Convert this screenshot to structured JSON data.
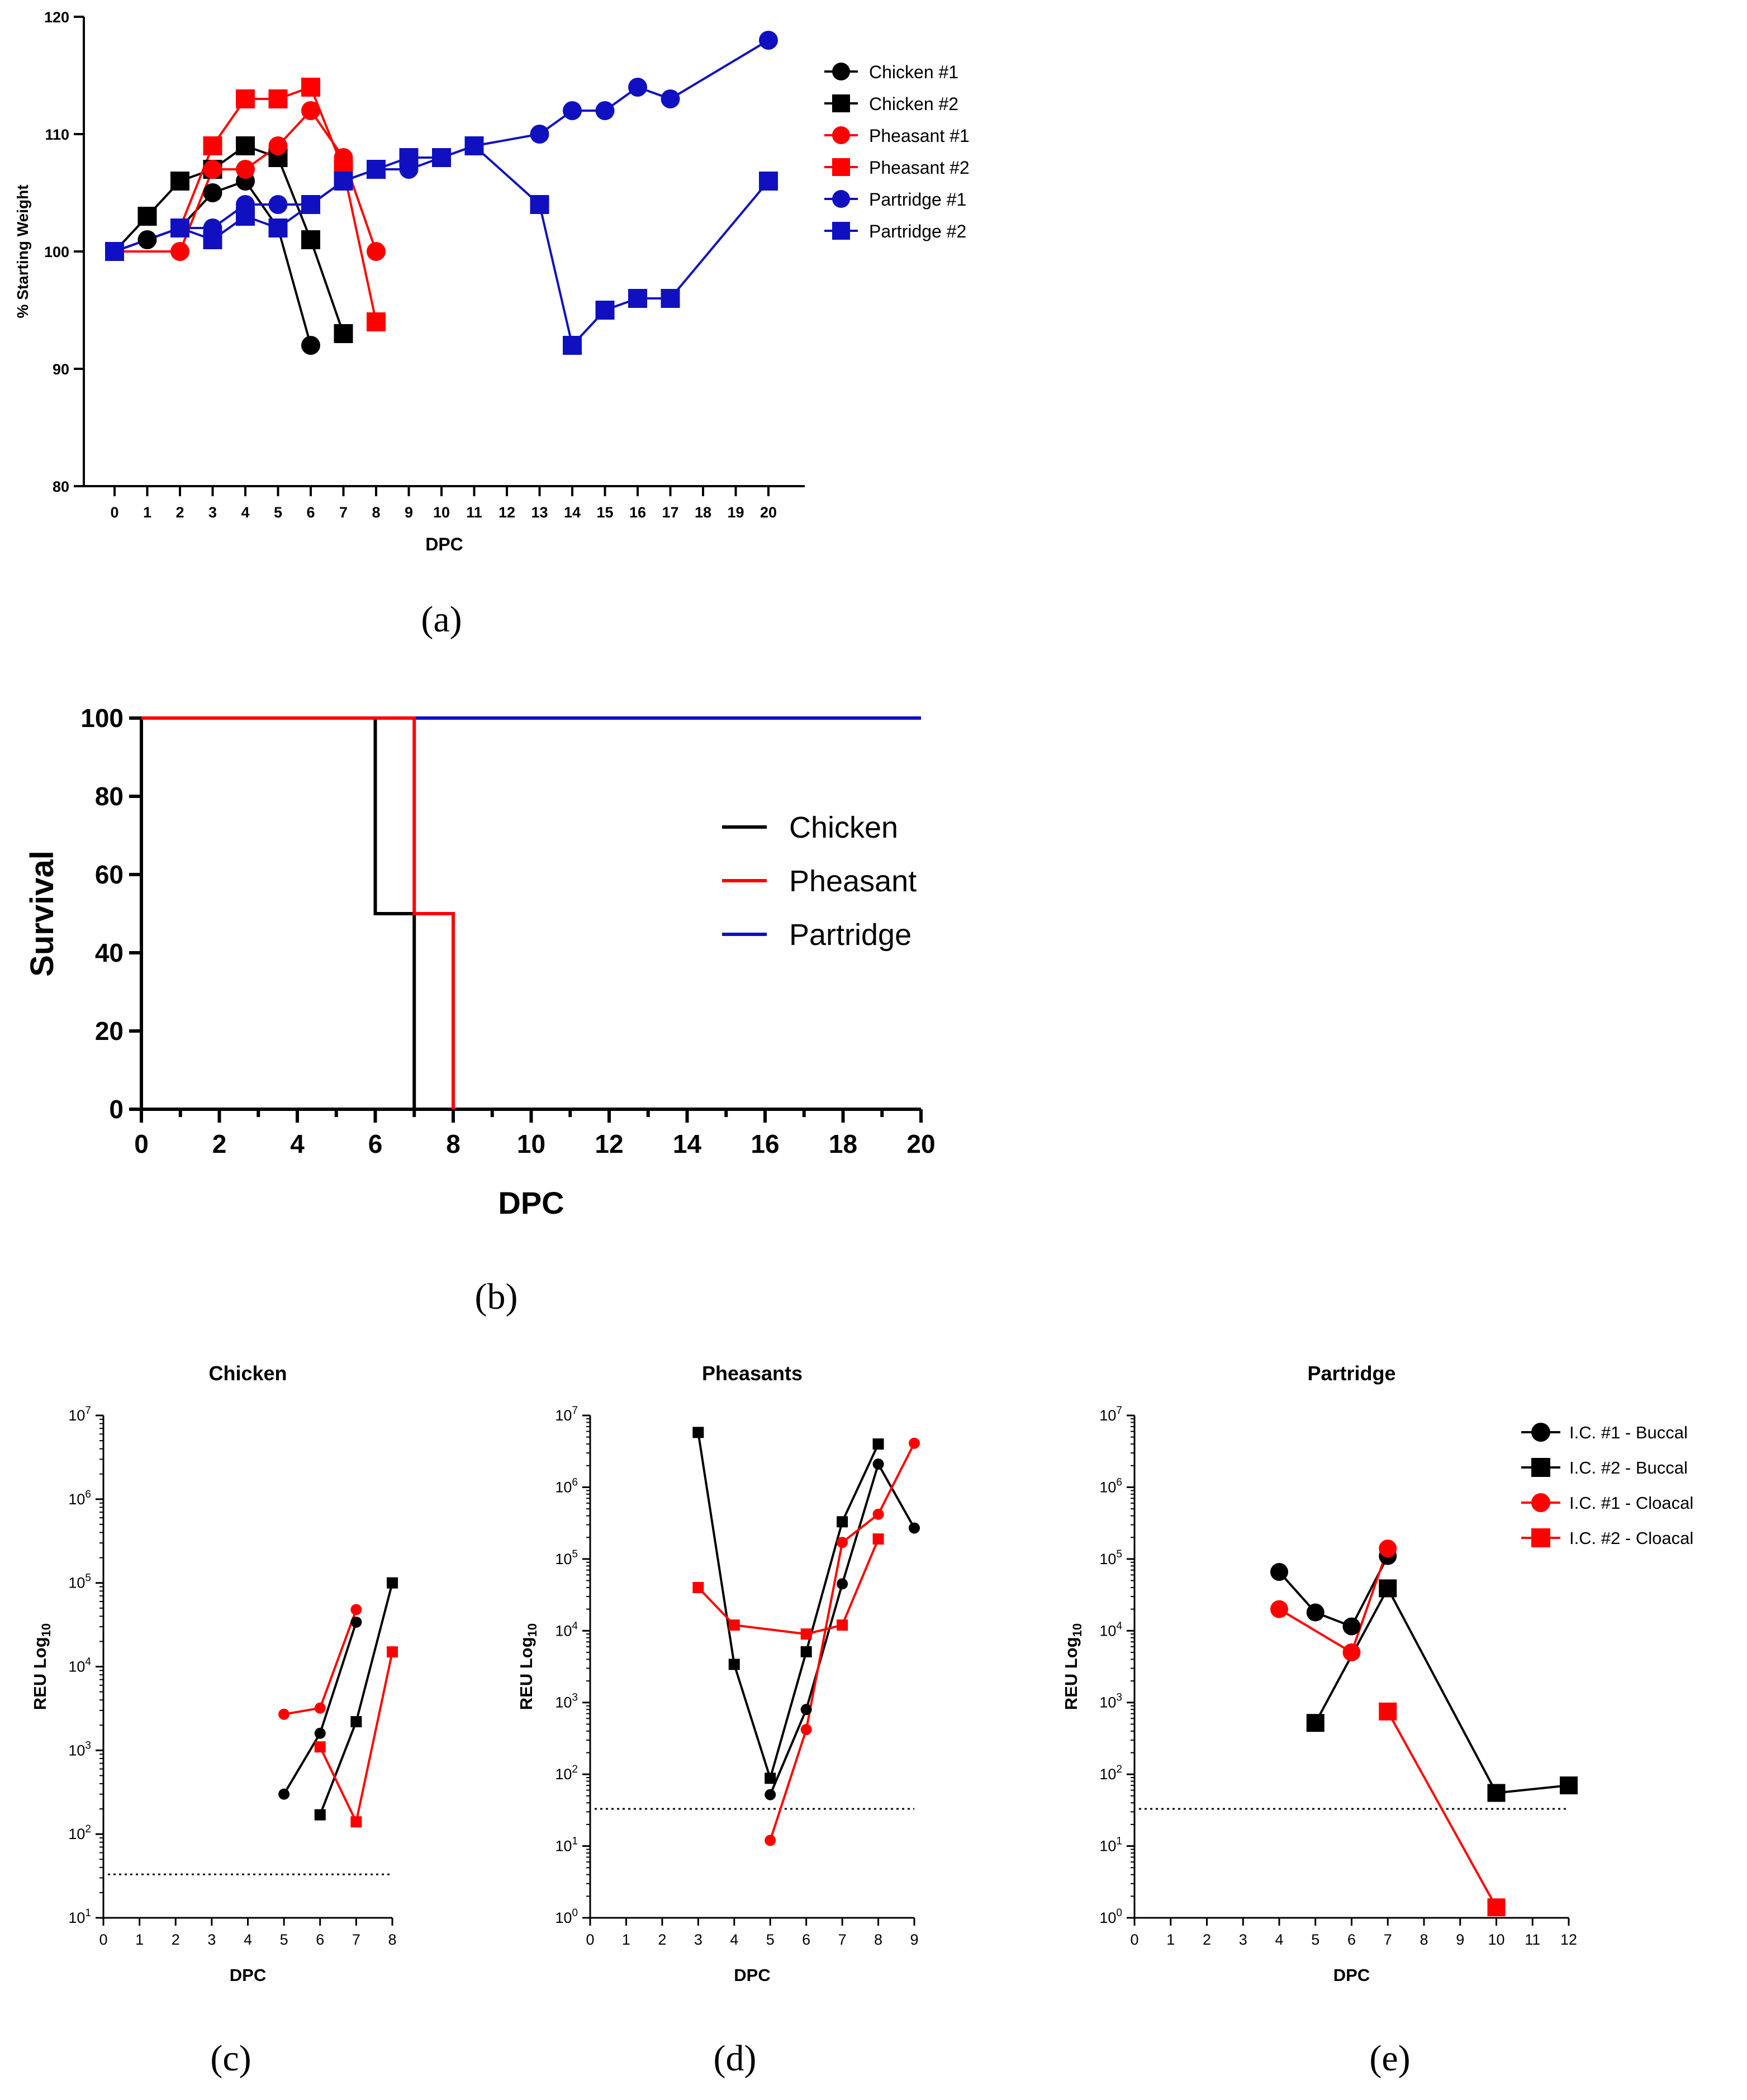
{
  "panel_labels": [
    "(a)",
    "(b)",
    "(c)",
    "(d)",
    "(e)"
  ],
  "chart_data": [
    {
      "id": "a",
      "type": "line",
      "title": "",
      "xlabel": "DPC",
      "ylabel": "% Starting Weight",
      "xlim": [
        0,
        20
      ],
      "ylim": [
        80,
        120
      ],
      "xticks": [
        0,
        1,
        2,
        3,
        4,
        5,
        6,
        7,
        8,
        9,
        10,
        11,
        12,
        13,
        14,
        15,
        16,
        17,
        18,
        19,
        20
      ],
      "yticks": [
        80,
        90,
        100,
        110,
        120
      ],
      "legend_position": "top-right outside",
      "colors": {
        "black": "#000000",
        "red": "#ff0000",
        "blue": "#1010c0"
      },
      "series": [
        {
          "name": "Chicken #1",
          "color": "#000000",
          "marker": "circle",
          "x": [
            0,
            1,
            2,
            3,
            4,
            5,
            6
          ],
          "y": [
            100,
            101,
            102,
            105,
            106,
            102,
            92
          ]
        },
        {
          "name": "Chicken #2",
          "color": "#000000",
          "marker": "square",
          "x": [
            0,
            1,
            2,
            3,
            4,
            5,
            6,
            7
          ],
          "y": [
            100,
            103,
            106,
            107,
            109,
            108,
            101,
            93
          ]
        },
        {
          "name": "Pheasant #1",
          "color": "#ff0000",
          "marker": "circle",
          "x": [
            0,
            2,
            3,
            4,
            5,
            6,
            7,
            8
          ],
          "y": [
            100,
            100,
            107,
            107,
            109,
            112,
            108,
            100
          ]
        },
        {
          "name": "Pheasant #2",
          "color": "#ff0000",
          "marker": "square",
          "x": [
            0,
            2,
            3,
            4,
            5,
            6,
            7,
            8
          ],
          "y": [
            100,
            102,
            109,
            113,
            113,
            114,
            107,
            94
          ]
        },
        {
          "name": "Partridge #1",
          "color": "#1010c0",
          "marker": "circle",
          "x": [
            0,
            2,
            3,
            4,
            5,
            6,
            7,
            8,
            9,
            10,
            11,
            13,
            14,
            15,
            16,
            17,
            20
          ],
          "y": [
            100,
            102,
            102,
            104,
            104,
            104,
            106,
            107,
            107,
            108,
            109,
            110,
            112,
            112,
            114,
            113,
            118
          ]
        },
        {
          "name": "Partridge #2",
          "color": "#1010c0",
          "marker": "square",
          "x": [
            0,
            2,
            3,
            4,
            5,
            6,
            7,
            8,
            9,
            10,
            11,
            13,
            14,
            15,
            16,
            17,
            20
          ],
          "y": [
            100,
            102,
            101,
            103,
            102,
            104,
            106,
            107,
            108,
            108,
            109,
            104,
            92,
            95,
            96,
            96,
            106
          ]
        }
      ]
    },
    {
      "id": "b",
      "type": "line",
      "subtype": "step",
      "title": "",
      "xlabel": "DPC",
      "ylabel": "Survival",
      "xlim": [
        0,
        20
      ],
      "ylim": [
        0,
        100
      ],
      "xticks": [
        0,
        2,
        4,
        6,
        8,
        10,
        12,
        14,
        16,
        18,
        20
      ],
      "yticks": [
        0,
        20,
        40,
        60,
        80,
        100
      ],
      "legend_position": "center-right",
      "series": [
        {
          "name": "Chicken",
          "color": "#000000",
          "x": [
            0,
            6,
            7
          ],
          "y": [
            100,
            50,
            0
          ]
        },
        {
          "name": "Pheasant",
          "color": "#ff0000",
          "x": [
            0,
            7,
            8
          ],
          "y": [
            100,
            50,
            0
          ]
        },
        {
          "name": "Partridge",
          "color": "#1010c0",
          "x": [
            0,
            20
          ],
          "y": [
            100,
            100
          ]
        }
      ]
    },
    {
      "id": "c",
      "type": "line",
      "scale_y": "log",
      "title": "Chicken",
      "xlabel": "DPC",
      "ylabel": "REU Log10",
      "xlim": [
        0,
        8
      ],
      "ylim": [
        10,
        10000000
      ],
      "xticks": [
        0,
        1,
        2,
        3,
        4,
        5,
        6,
        7,
        8
      ],
      "ytick_exponents": [
        1,
        2,
        3,
        4,
        5,
        6,
        7
      ],
      "detection_limit": 33,
      "series": [
        {
          "name": "I.C. #1 - Buccal",
          "color": "#000000",
          "marker": "circle",
          "x": [
            5,
            6,
            7
          ],
          "y": [
            300,
            1600,
            34000
          ]
        },
        {
          "name": "I.C. #2 - Buccal",
          "color": "#000000",
          "marker": "square",
          "x": [
            6,
            7,
            8
          ],
          "y": [
            170,
            2200,
            100000
          ]
        },
        {
          "name": "I.C. #1 - Cloacal",
          "color": "#ff0000",
          "marker": "circle",
          "x": [
            5,
            6,
            7
          ],
          "y": [
            2700,
            3200,
            48000
          ]
        },
        {
          "name": "I.C. #2 - Cloacal",
          "color": "#ff0000",
          "marker": "square",
          "x": [
            6,
            7,
            8
          ],
          "y": [
            1100,
            140,
            15000
          ]
        }
      ]
    },
    {
      "id": "d",
      "type": "line",
      "scale_y": "log",
      "title": "Pheasants",
      "xlabel": "DPC",
      "ylabel": "REU Log10",
      "xlim": [
        0,
        9
      ],
      "ylim": [
        1,
        10000000
      ],
      "xticks": [
        0,
        1,
        2,
        3,
        4,
        5,
        6,
        7,
        8,
        9
      ],
      "ytick_exponents": [
        0,
        1,
        2,
        3,
        4,
        5,
        6,
        7
      ],
      "detection_limit": 33,
      "series": [
        {
          "name": "I.C. #1 - Buccal",
          "color": "#000000",
          "marker": "circle",
          "x": [
            5,
            6,
            7,
            8,
            9
          ],
          "y": [
            52,
            800,
            45000,
            2100000,
            270000
          ]
        },
        {
          "name": "I.C. #2 - Buccal",
          "color": "#000000",
          "marker": "square",
          "x": [
            3,
            4,
            5,
            6,
            7,
            8
          ],
          "y": [
            5800000,
            3400,
            88,
            5100,
            330000,
            4000000
          ]
        },
        {
          "name": "I.C. #1 - Cloacal",
          "color": "#ff0000",
          "marker": "circle",
          "x": [
            5,
            6,
            7,
            8,
            9
          ],
          "y": [
            12,
            420,
            170000,
            420000,
            4100000
          ]
        },
        {
          "name": "I.C. #2 - Cloacal",
          "color": "#ff0000",
          "marker": "square",
          "x": [
            3,
            4,
            6,
            7,
            8
          ],
          "y": [
            40000,
            12000,
            9000,
            12000,
            190000
          ]
        }
      ]
    },
    {
      "id": "e",
      "type": "line",
      "scale_y": "log",
      "title": "Partridge",
      "xlabel": "DPC",
      "ylabel": "REU Log10",
      "xlim": [
        0,
        12
      ],
      "ylim": [
        1,
        10000000
      ],
      "xticks": [
        0,
        1,
        2,
        3,
        4,
        5,
        6,
        7,
        8,
        9,
        10,
        11,
        12
      ],
      "ytick_exponents": [
        0,
        1,
        2,
        3,
        4,
        5,
        6,
        7
      ],
      "detection_limit": 33,
      "legend_position": "top-right",
      "series": [
        {
          "name": "I.C. #1 - Buccal",
          "color": "#000000",
          "marker": "circle",
          "x": [
            4,
            5,
            6,
            7
          ],
          "y": [
            66000,
            18000,
            11500,
            110000
          ]
        },
        {
          "name": "I.C. #2 - Buccal",
          "color": "#000000",
          "marker": "square",
          "x": [
            5,
            7,
            10,
            12
          ],
          "y": [
            520,
            39000,
            55,
            70
          ]
        },
        {
          "name": "I.C. #1 - Cloacal",
          "color": "#ff0000",
          "marker": "circle",
          "x": [
            4,
            6,
            7
          ],
          "y": [
            20000,
            5000,
            140000
          ]
        },
        {
          "name": "I.C. #2 - Cloacal",
          "color": "#ff0000",
          "marker": "square",
          "x": [
            7,
            10
          ],
          "y": [
            750,
            1.4
          ]
        }
      ]
    }
  ]
}
